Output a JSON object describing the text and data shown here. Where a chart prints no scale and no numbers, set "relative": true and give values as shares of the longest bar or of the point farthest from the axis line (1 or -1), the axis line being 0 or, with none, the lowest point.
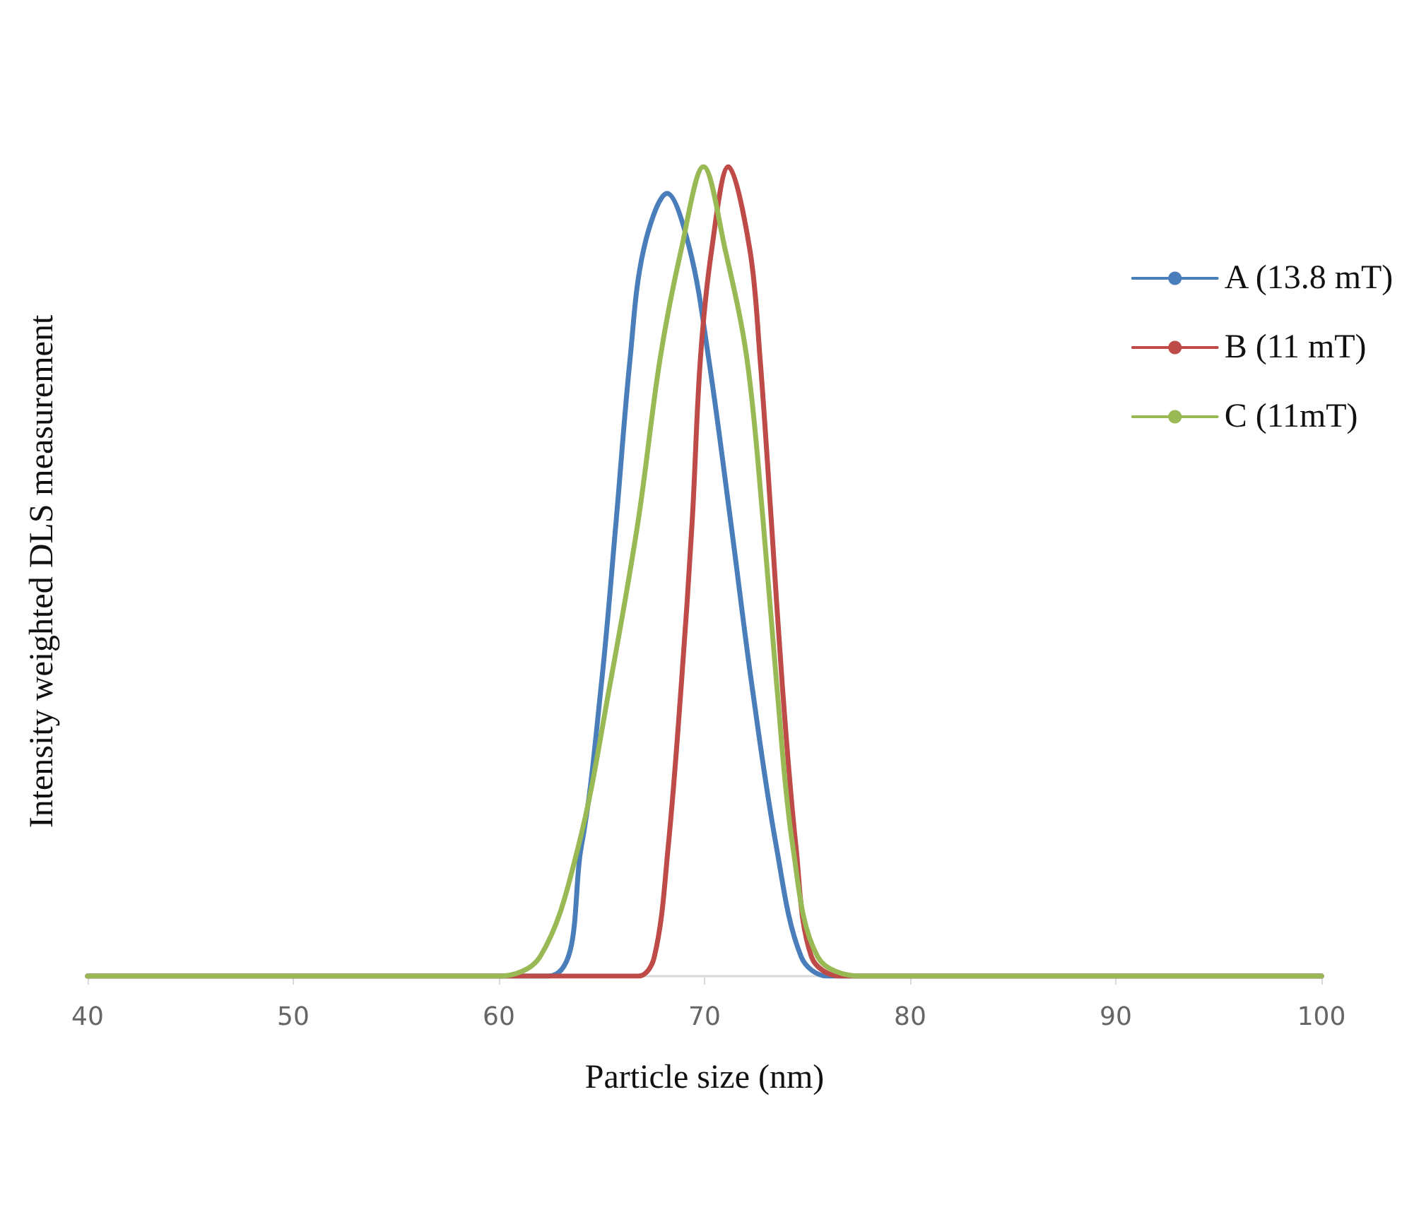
{
  "chart_data": {
    "type": "line",
    "relative": true,
    "xlabel": "Particle size (nm)",
    "ylabel": "Intensity weighted DLS measurement",
    "xlim": [
      40,
      100
    ],
    "xticks": [
      40,
      50,
      60,
      70,
      80,
      90,
      100
    ],
    "grid": false,
    "legend": "top right",
    "marker": "none",
    "line_style": "solid",
    "series": [
      {
        "name": "A (13.8 mT)",
        "color": "#4a7ebb",
        "x": [
          40,
          62.4,
          64.0,
          64.98,
          65.7,
          66.38,
          67.04,
          68.18,
          69.28,
          70.2,
          71.27,
          72.3,
          73.5,
          74.7,
          76.0,
          100
        ],
        "values": [
          0,
          0,
          0.159,
          0.36,
          0.562,
          0.763,
          0.898,
          0.967,
          0.898,
          0.763,
          0.562,
          0.36,
          0.159,
          0.024,
          0,
          0
        ]
      },
      {
        "name": "B (11 mT)",
        "color": "#be4b48",
        "x": [
          40,
          66.77,
          67.56,
          68.23,
          68.87,
          69.4,
          69.8,
          70.35,
          71.16,
          72.2,
          72.7,
          73.25,
          73.78,
          74.45,
          75.2,
          76.6,
          100
        ],
        "values": [
          0,
          0,
          0.024,
          0.159,
          0.36,
          0.562,
          0.763,
          0.898,
          1,
          0.898,
          0.763,
          0.562,
          0.36,
          0.159,
          0.024,
          0,
          0
        ]
      },
      {
        "name": "C (11mT)",
        "color": "#98b954",
        "x": [
          40,
          60.0,
          62.0,
          63.85,
          65.4,
          66.77,
          67.84,
          68.87,
          69.95,
          71.0,
          72.06,
          72.85,
          73.51,
          74.3,
          75.5,
          77.6,
          100
        ],
        "values": [
          0,
          0,
          0.024,
          0.159,
          0.36,
          0.562,
          0.763,
          0.898,
          1,
          0.898,
          0.763,
          0.562,
          0.36,
          0.159,
          0.024,
          0,
          0
        ]
      }
    ]
  }
}
